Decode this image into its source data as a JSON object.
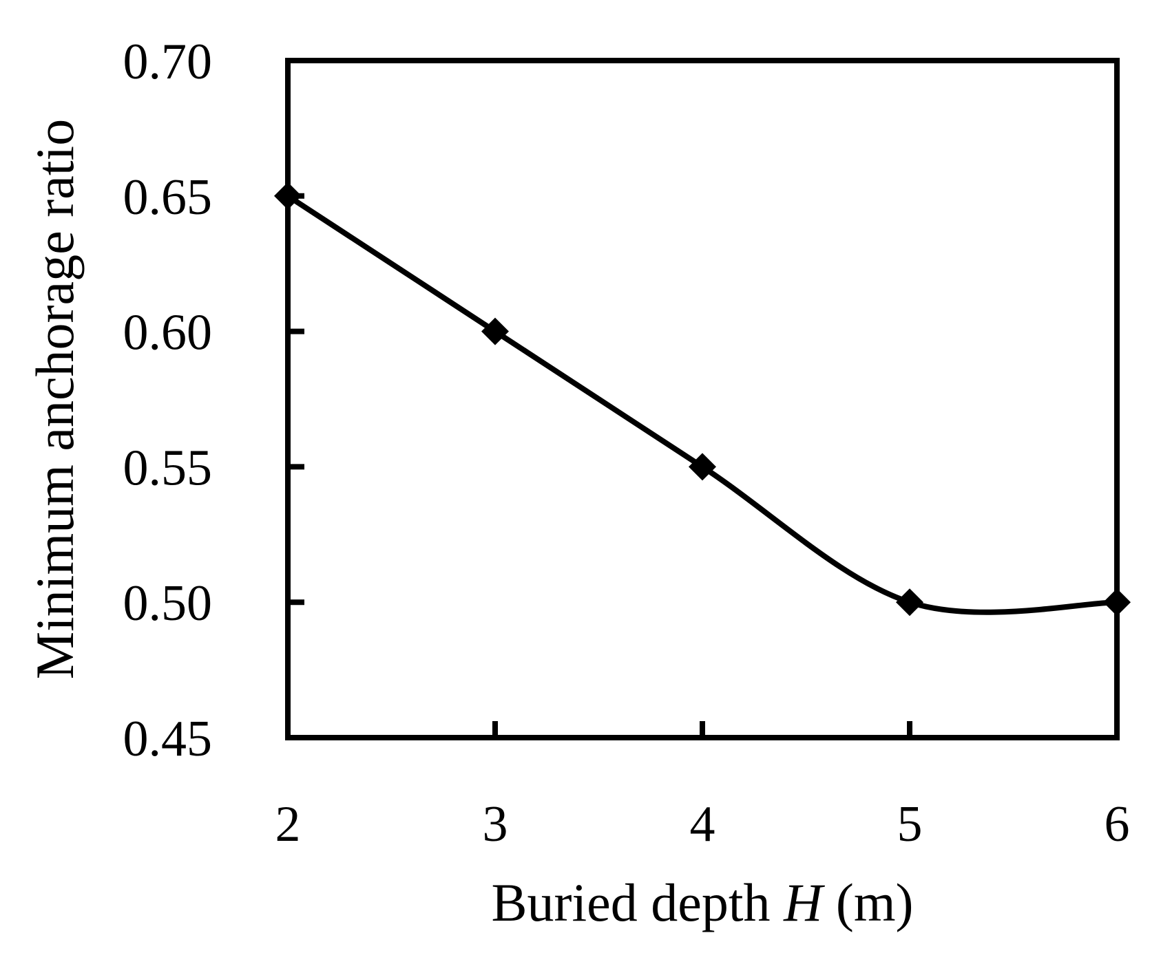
{
  "chart_data": {
    "type": "line",
    "title": "",
    "xlabel_parts": [
      {
        "text": "Buried depth ",
        "italic": false
      },
      {
        "text": "H",
        "italic": true
      },
      {
        "text": " (m)",
        "italic": false
      }
    ],
    "ylabel": "Minimum anchorage ratio",
    "x": [
      2,
      3,
      4,
      5,
      6
    ],
    "series": [
      {
        "values": [
          0.65,
          0.6,
          0.55,
          0.5,
          0.5
        ],
        "marker": "diamond",
        "line": "smooth",
        "color": "#000000"
      }
    ],
    "xlim": [
      2,
      6
    ],
    "ylim": [
      0.45,
      0.7
    ],
    "xticks": [
      2,
      3,
      4,
      5,
      6
    ],
    "xtick_labels": [
      "2",
      "3",
      "4",
      "5",
      "6"
    ],
    "yticks": [
      0.45,
      0.5,
      0.55,
      0.6,
      0.65,
      0.7
    ],
    "ytick_labels": [
      "0.45",
      "0.50",
      "0.55",
      "0.60",
      "0.65",
      "0.70"
    ],
    "grid": false,
    "legend": "none"
  }
}
